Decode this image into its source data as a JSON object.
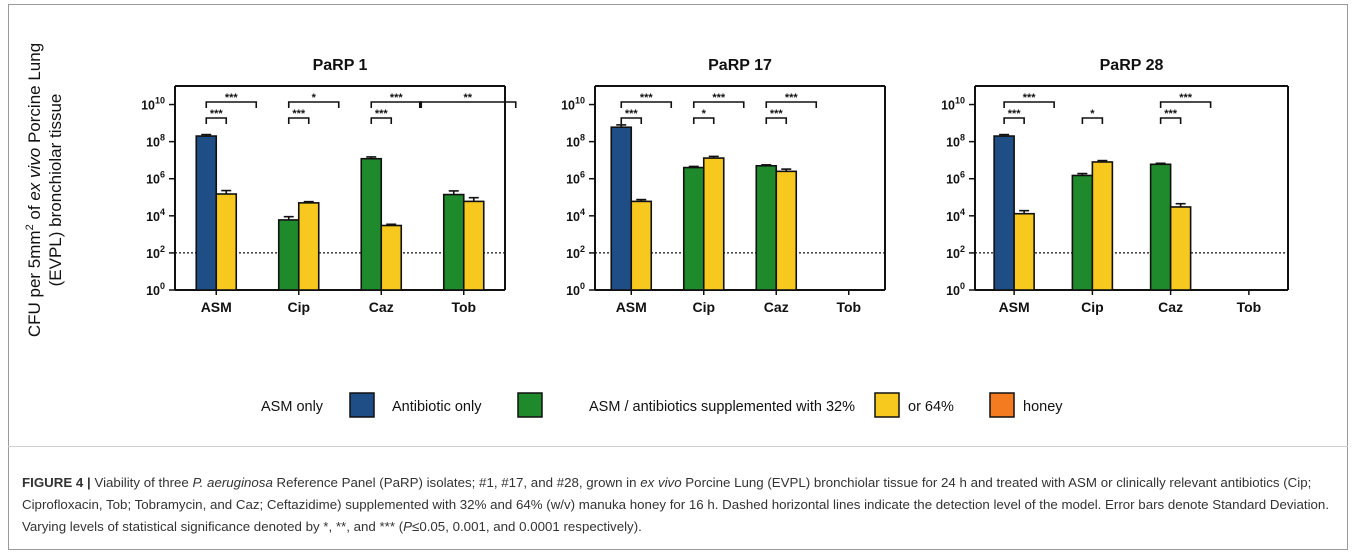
{
  "figure": {
    "y_axis_label_line1": "CFU per 5mm",
    "y_axis_label_sup": "2",
    "y_axis_label_line1b": " of ",
    "y_axis_label_italic": "ex vivo",
    "y_axis_label_line1c": " Porcine Lung",
    "y_axis_label_line2": "(EVPL) bronchiolar tissue"
  },
  "legend": {
    "items": [
      {
        "label": "ASM only",
        "color": "#1f4e86"
      },
      {
        "label": "Antibiotic only",
        "color": "#1e8a2c"
      },
      {
        "label": "ASM / antibiotics supplemented with 32%",
        "color": "#f7c81d"
      },
      {
        "label": "or 64%",
        "color": "#f47b20"
      },
      {
        "label": "honey",
        "color": ""
      }
    ]
  },
  "colors": {
    "asm": "#1f4e86",
    "antibiotic": "#1e8a2c",
    "honey32": "#f7c81d",
    "honey64": "#f47b20"
  },
  "chart_data": [
    {
      "type": "bar",
      "title": "PaRP 1",
      "categories": [
        "ASM",
        "Cip",
        "Caz",
        "Tob"
      ],
      "y_scale": "log10",
      "y_ticks": [
        "10^0",
        "10^2",
        "10^4",
        "10^6",
        "10^8",
        "10^10"
      ],
      "ylim": [
        1,
        100000000000.0
      ],
      "detection_limit": 100,
      "bars": [
        {
          "category": "ASM",
          "group": "ASM only",
          "value": 200000000.0,
          "error": 40000000.0
        },
        {
          "category": "ASM",
          "group": "32%",
          "value": 150000.0,
          "error": 80000.0
        },
        {
          "category": "Cip",
          "group": "Antibiotic only",
          "value": 6000.0,
          "error": 3000.0
        },
        {
          "category": "Cip",
          "group": "32%",
          "value": 50000.0,
          "error": 8000.0
        },
        {
          "category": "Caz",
          "group": "Antibiotic only",
          "value": 12000000.0,
          "error": 3000000.0
        },
        {
          "category": "Caz",
          "group": "32%",
          "value": 3000.0,
          "error": 500.0
        },
        {
          "category": "Tob",
          "group": "Antibiotic only",
          "value": 140000.0,
          "error": 80000.0
        },
        {
          "category": "Tob",
          "group": "32%",
          "value": 60000.0,
          "error": 35000.0
        }
      ],
      "significance": [
        {
          "category": "ASM",
          "label": "***",
          "level": "upper"
        },
        {
          "category": "ASM",
          "label": "***",
          "level": "lower"
        },
        {
          "category": "Cip",
          "label": "*",
          "level": "upper"
        },
        {
          "category": "Cip",
          "label": "***",
          "level": "lower"
        },
        {
          "category": "Caz",
          "label": "***",
          "level": "upper"
        },
        {
          "category": "Caz",
          "label": "***",
          "level": "lower"
        },
        {
          "category": "Tob",
          "label": "**",
          "level": "upper"
        }
      ]
    },
    {
      "type": "bar",
      "title": "PaRP 17",
      "categories": [
        "ASM",
        "Cip",
        "Caz",
        "Tob"
      ],
      "y_scale": "log10",
      "y_ticks": [
        "10^0",
        "10^2",
        "10^4",
        "10^6",
        "10^8",
        "10^10"
      ],
      "ylim": [
        1,
        100000000000.0
      ],
      "detection_limit": 100,
      "bars": [
        {
          "category": "ASM",
          "group": "ASM only",
          "value": 600000000.0,
          "error": 200000000.0
        },
        {
          "category": "ASM",
          "group": "32%",
          "value": 60000.0,
          "error": 15000.0
        },
        {
          "category": "Cip",
          "group": "Antibiotic only",
          "value": 4000000.0,
          "error": 600000.0
        },
        {
          "category": "Cip",
          "group": "32%",
          "value": 13000000.0,
          "error": 3000000.0
        },
        {
          "category": "Caz",
          "group": "Antibiotic only",
          "value": 5000000.0,
          "error": 600000.0
        },
        {
          "category": "Caz",
          "group": "32%",
          "value": 2500000.0,
          "error": 800000.0
        }
      ],
      "significance": [
        {
          "category": "ASM",
          "label": "***",
          "level": "upper"
        },
        {
          "category": "ASM",
          "label": "***",
          "level": "lower"
        },
        {
          "category": "Cip",
          "label": "***",
          "level": "upper"
        },
        {
          "category": "Cip",
          "label": "*",
          "level": "lower"
        },
        {
          "category": "Caz",
          "label": "***",
          "level": "upper"
        },
        {
          "category": "Caz",
          "label": "***",
          "level": "lower"
        }
      ]
    },
    {
      "type": "bar",
      "title": "PaRP 28",
      "categories": [
        "ASM",
        "Cip",
        "Caz",
        "Tob"
      ],
      "y_scale": "log10",
      "y_ticks": [
        "10^0",
        "10^2",
        "10^4",
        "10^6",
        "10^8",
        "10^10"
      ],
      "ylim": [
        1,
        100000000000.0
      ],
      "detection_limit": 100,
      "bars": [
        {
          "category": "ASM",
          "group": "ASM only",
          "value": 200000000.0,
          "error": 40000000.0
        },
        {
          "category": "ASM",
          "group": "32%",
          "value": 13000.0,
          "error": 6000.0
        },
        {
          "category": "Cip",
          "group": "Antibiotic only",
          "value": 1500000.0,
          "error": 400000.0
        },
        {
          "category": "Cip",
          "group": "32%",
          "value": 8000000.0,
          "error": 1500000.0
        },
        {
          "category": "Caz",
          "group": "Antibiotic only",
          "value": 6000000.0,
          "error": 800000.0
        },
        {
          "category": "Caz",
          "group": "32%",
          "value": 30000.0,
          "error": 15000.0
        }
      ],
      "significance": [
        {
          "category": "ASM",
          "label": "***",
          "level": "upper"
        },
        {
          "category": "ASM",
          "label": "***",
          "level": "lower"
        },
        {
          "category": "Cip",
          "label": "*",
          "level": "lower"
        },
        {
          "category": "Caz",
          "label": "***",
          "level": "upper"
        },
        {
          "category": "Caz",
          "label": "***",
          "level": "lower"
        }
      ]
    }
  ],
  "caption": {
    "lead": "FIGURE 4 |",
    "t1": " Viability of three ",
    "t2_italic": "P. aeruginosa",
    "t3": " Reference Panel (PaRP) isolates; #1, #17, and #28, grown in ",
    "t4_italic": "ex vivo",
    "t5": " Porcine Lung (EVPL) bronchiolar tissue for 24 h and treated with ASM or clinically relevant antibiotics (Cip; Ciprofloxacin, Tob; Tobramycin, and Caz; Ceftazidime) supplemented with 32% and 64% (w/v) manuka honey for 16 h. Dashed horizontal lines indicate the detection level of the model. Error bars denote Standard Deviation. Varying levels of statistical significance denoted by *, **, and *** (",
    "t6_italic": "P",
    "t7": "≤0.05, 0.001, and 0.0001 respectively)."
  }
}
